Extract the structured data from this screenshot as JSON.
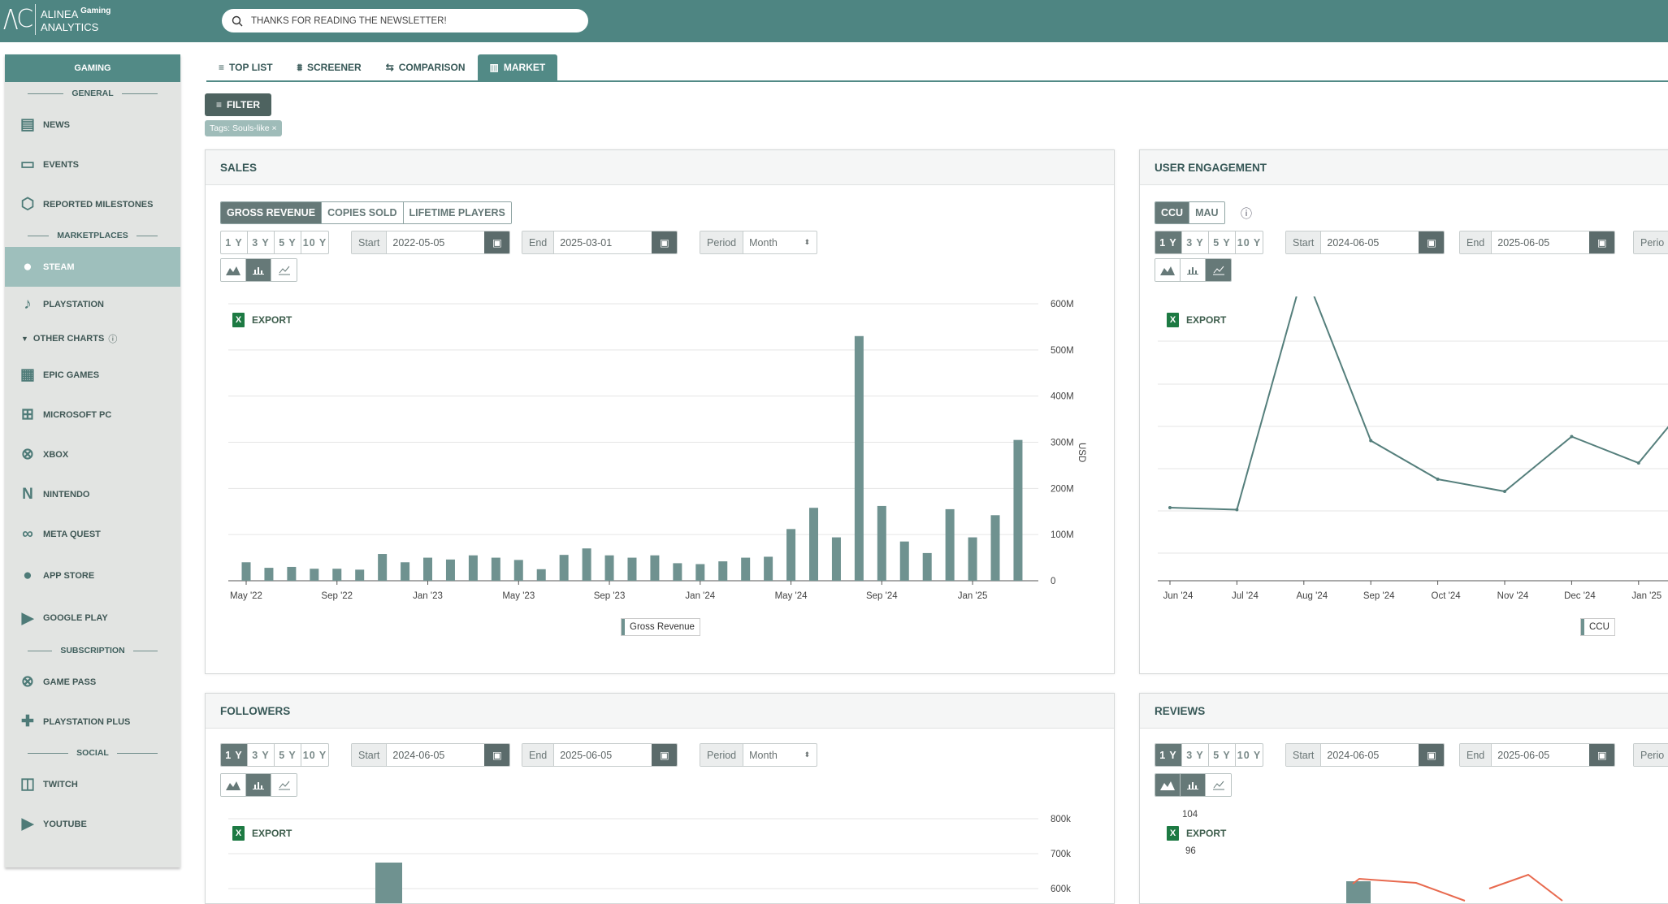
{
  "app": {
    "logo_line1": "ALINEA",
    "logo_sup": "Gaming",
    "logo_line2": "ANALYTICS",
    "search_placeholder": "THANKS FOR READING THE NEWSLETTER!"
  },
  "sidebar": {
    "title": "GAMING",
    "sections": {
      "general": "GENERAL",
      "marketplaces": "MARKETPLACES",
      "subscription": "SUBSCRIPTION",
      "social": "SOCIAL"
    },
    "items": {
      "news": "NEWS",
      "events": "EVENTS",
      "milestones": "REPORTED MILESTONES",
      "steam": "STEAM",
      "playstation": "PLAYSTATION",
      "other": "OTHER CHARTS",
      "epic": "EPIC GAMES",
      "microsoft": "MICROSOFT PC",
      "xbox": "XBOX",
      "nintendo": "NINTENDO",
      "meta": "META QUEST",
      "appstore": "APP STORE",
      "googleplay": "GOOGLE PLAY",
      "gamepass": "GAME PASS",
      "psplus": "PLAYSTATION PLUS",
      "twitch": "TWITCH",
      "youtube": "YOUTUBE"
    }
  },
  "tabs": [
    "TOP LIST",
    "SCREENER",
    "COMPARISON",
    "MARKET"
  ],
  "filter": {
    "label": "FILTER",
    "tag": "Tags: Souls-like ×"
  },
  "common": {
    "ranges": [
      "1 Y",
      "3 Y",
      "5 Y",
      "10 Y"
    ],
    "start": "Start",
    "end": "End",
    "period": "Period",
    "month": "Month",
    "export": "EXPORT"
  },
  "sales": {
    "title": "SALES",
    "metrics": [
      "GROSS REVENUE",
      "COPIES SOLD",
      "LIFETIME PLAYERS"
    ],
    "start_val": "2022-05-05",
    "end_val": "2025-03-01",
    "legend": "Gross Revenue"
  },
  "engagement": {
    "title": "USER ENGAGEMENT",
    "metrics": [
      "CCU",
      "MAU"
    ],
    "start_val": "2024-06-05",
    "end_val": "2025-06-05",
    "period_partial": "Perio",
    "legend": "CCU"
  },
  "followers": {
    "title": "FOLLOWERS",
    "start_val": "2024-06-05",
    "end_val": "2025-06-05",
    "y_ticks": [
      "800k",
      "700k",
      "600k"
    ]
  },
  "reviews": {
    "title": "REVIEWS",
    "start_val": "2024-06-05",
    "end_val": "2025-06-05",
    "period_partial": "Perio",
    "y_ticks": [
      "104",
      "96"
    ]
  },
  "chart_data": [
    {
      "type": "bar",
      "title": "SALES",
      "series": [
        {
          "name": "Gross Revenue",
          "values": [
            40,
            28,
            30,
            26,
            26,
            24,
            58,
            40,
            50,
            46,
            55,
            50,
            45,
            25,
            56,
            70,
            55,
            50,
            55,
            38,
            36,
            42,
            50,
            52,
            112,
            158,
            94,
            530,
            162,
            85,
            60,
            155,
            94,
            142,
            305
          ]
        }
      ],
      "x": [
        "2022-05",
        "2022-06",
        "2022-07",
        "2022-08",
        "2022-09",
        "2022-10",
        "2022-11",
        "2022-12",
        "2023-01",
        "2023-02",
        "2023-03",
        "2023-04",
        "2023-05",
        "2023-06",
        "2023-07",
        "2023-08",
        "2023-09",
        "2023-10",
        "2023-11",
        "2023-12",
        "2024-01",
        "2024-02",
        "2024-03",
        "2024-04",
        "2024-05",
        "2024-06",
        "2024-07",
        "2024-08",
        "2024-09",
        "2024-10",
        "2024-11",
        "2024-12",
        "2025-01",
        "2025-02",
        "2025-03"
      ],
      "x_tick_labels": [
        "May '22",
        "Sep '22",
        "Jan '23",
        "May '23",
        "Sep '23",
        "Jan '24",
        "May '24",
        "Sep '24",
        "Jan '25"
      ],
      "y_ticks": [
        "0",
        "100M",
        "200M",
        "300M",
        "400M",
        "500M",
        "600M"
      ],
      "ylabel": "USD",
      "ylim": [
        0,
        600
      ]
    },
    {
      "type": "line",
      "title": "USER ENGAGEMENT",
      "series": [
        {
          "name": "CCU",
          "values": [
            98,
            97,
            215,
            131,
            112,
            106,
            133,
            120,
            160
          ]
        }
      ],
      "x": [
        "2024-06",
        "2024-07",
        "2024-08",
        "2024-09",
        "2024-10",
        "2024-11",
        "2024-12",
        "2025-01",
        "2025-02"
      ],
      "x_tick_labels": [
        "Jun '24",
        "Jul '24",
        "Aug '24",
        "Sep '24",
        "Oct '24",
        "Nov '24",
        "Dec '24",
        "Jan '25"
      ]
    }
  ]
}
